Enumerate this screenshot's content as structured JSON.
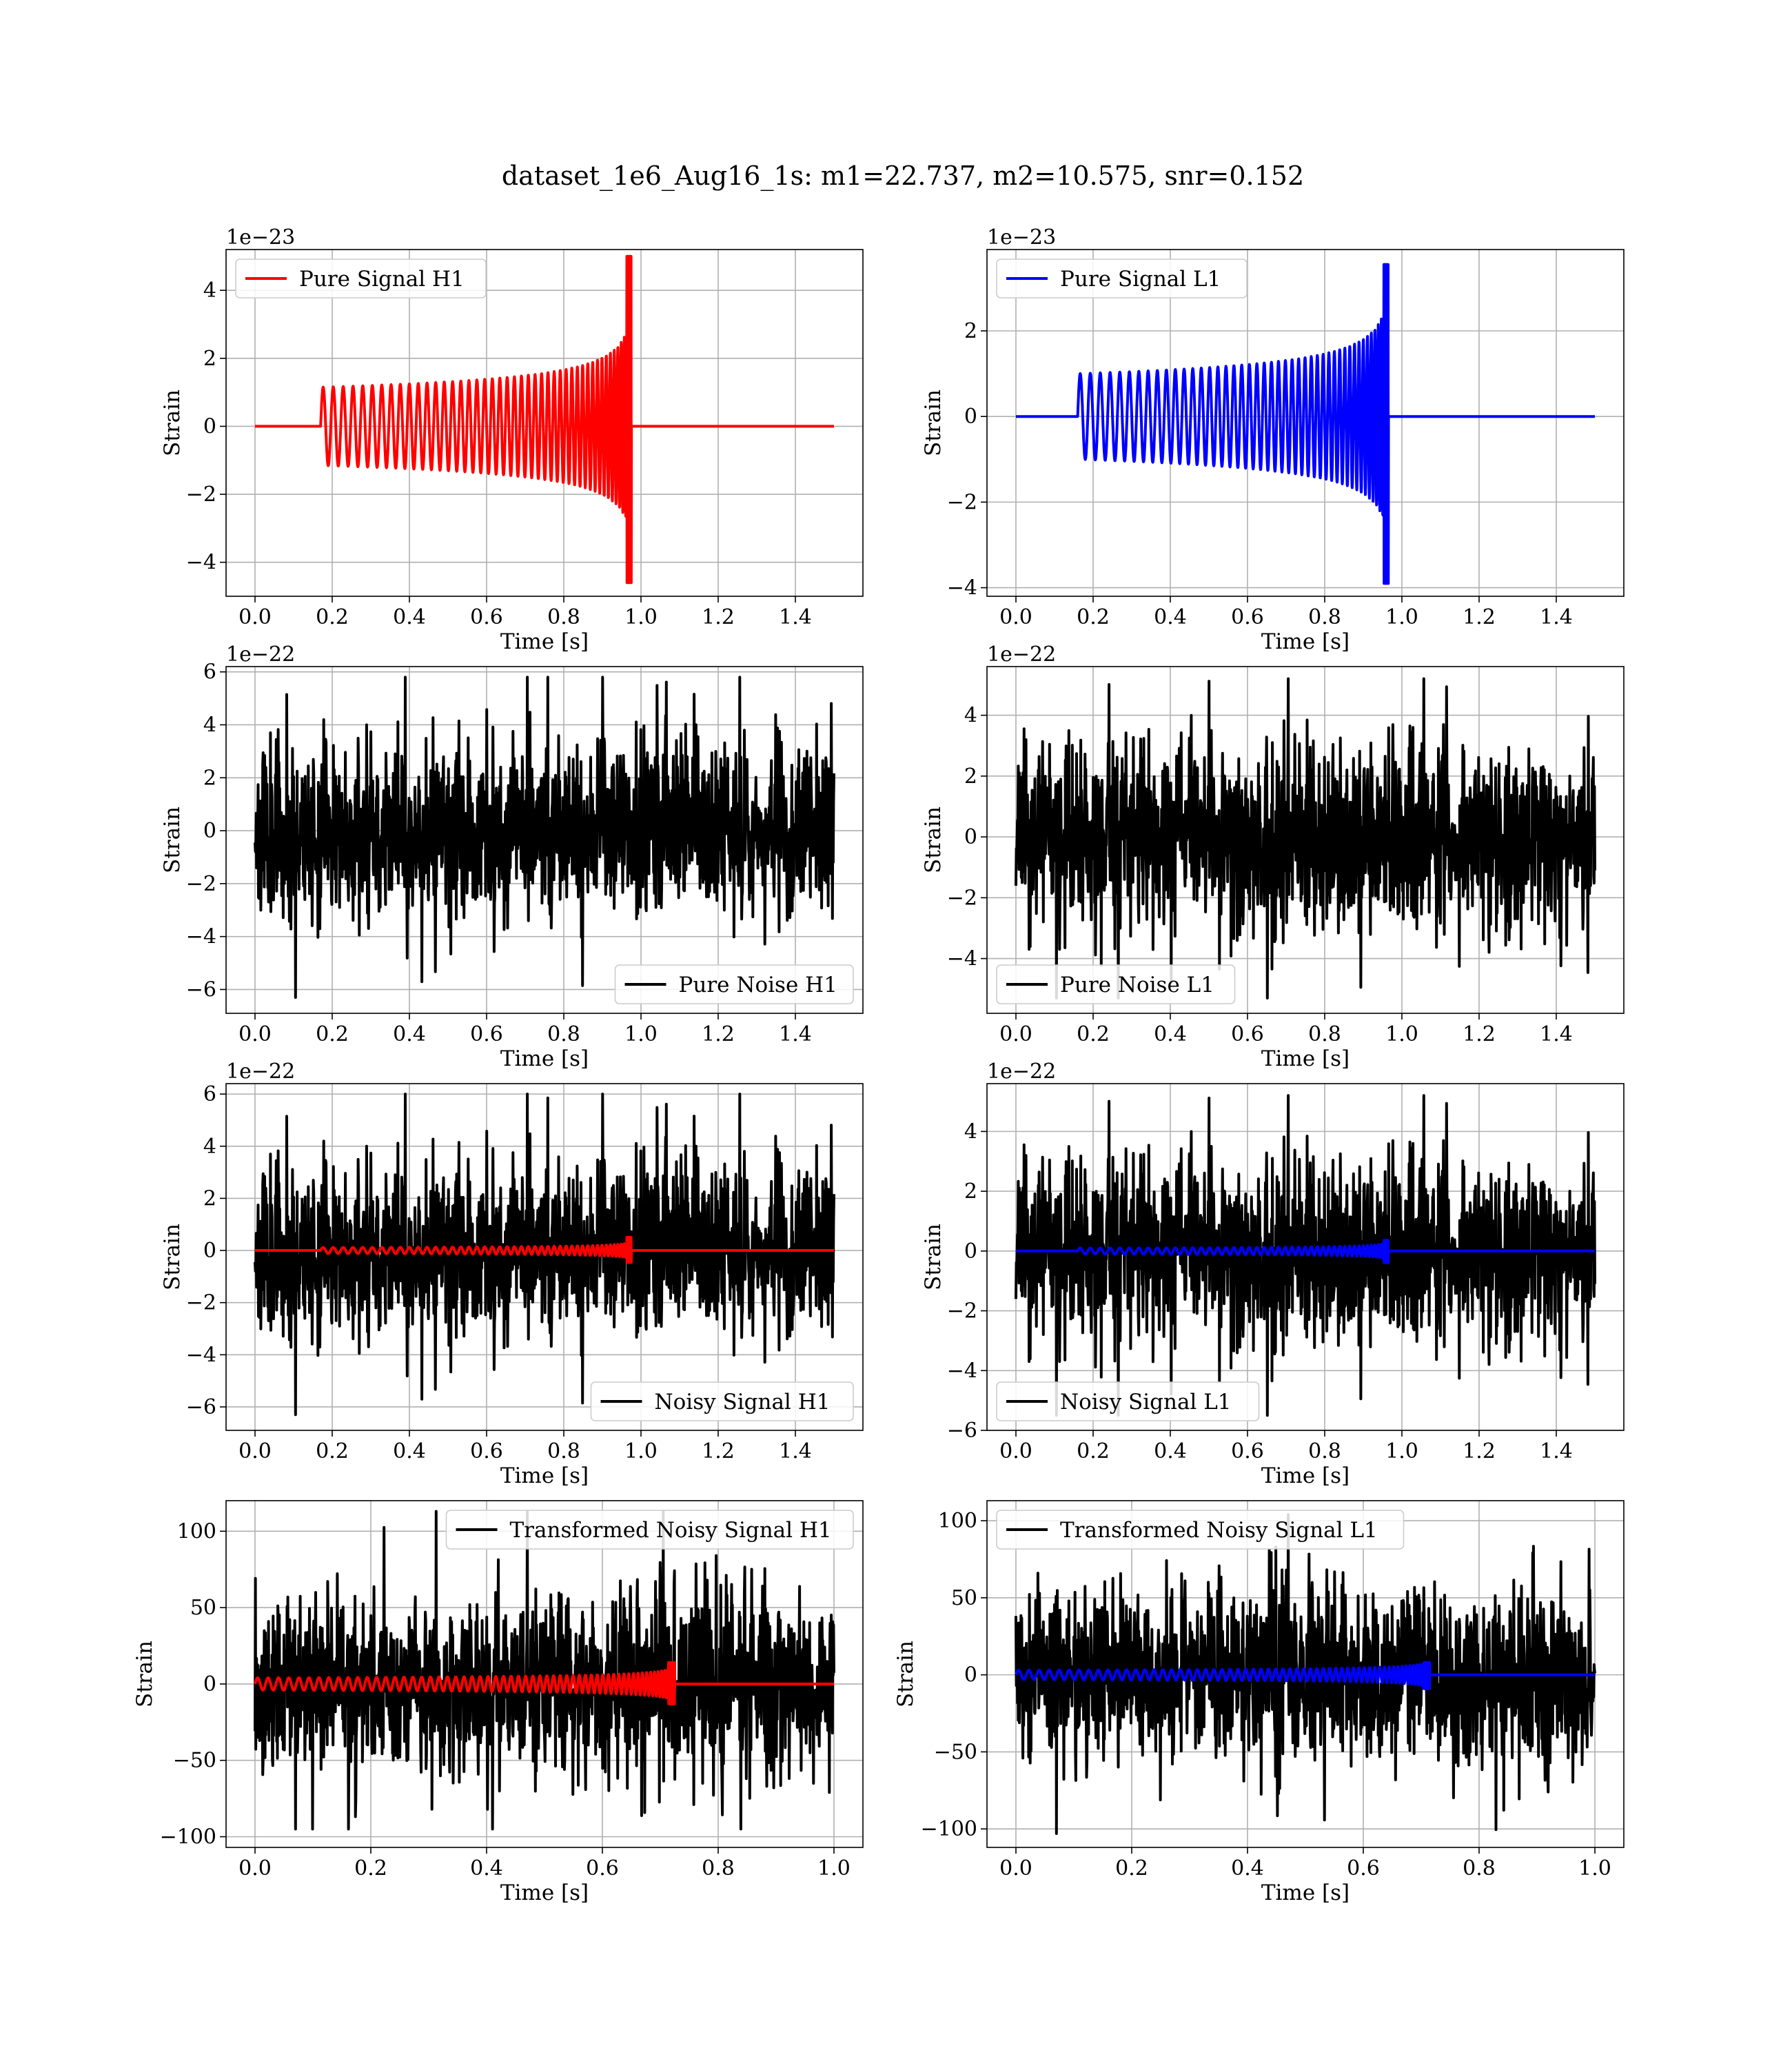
{
  "figure": {
    "title": "dataset_1e6_Aug16_1s: m1=22.737, m2=10.575, snr=0.152"
  },
  "colors": {
    "h1": "#ff0000",
    "l1": "#0000ff",
    "noise": "#000000",
    "grid": "#b0b0b0"
  },
  "chart_data": [
    {
      "id": "h1_signal",
      "type": "line",
      "xlabel": "Time [s]",
      "ylabel": "Strain",
      "offset": "1e−23",
      "xlim": [
        -0.075,
        1.575
      ],
      "ylim": [
        -5.0,
        5.2
      ],
      "xticks": [
        0.0,
        0.2,
        0.4,
        0.6,
        0.8,
        1.0,
        1.2,
        1.4
      ],
      "xtick_labels": [
        "0.0",
        "0.2",
        "0.4",
        "0.6",
        "0.8",
        "1.0",
        "1.2",
        "1.4"
      ],
      "yticks": [
        -4,
        -2,
        0,
        2,
        4
      ],
      "ytick_labels": [
        "−4",
        "−2",
        "0",
        "2",
        "4"
      ],
      "grid": true,
      "legend_position": "upper left",
      "series": [
        {
          "name": "Pure Signal H1",
          "color": "#ff0000",
          "kind": "chirp",
          "x_range": [
            0.0,
            1.5
          ],
          "t_start": 0.17,
          "t_merge": 0.975,
          "base_amp": 1.15,
          "peak_pos": 5.0,
          "peak_neg": -4.6,
          "n_cycles": 46
        }
      ]
    },
    {
      "id": "l1_signal",
      "type": "line",
      "xlabel": "Time [s]",
      "ylabel": "Strain",
      "offset": "1e−23",
      "xlim": [
        -0.075,
        1.575
      ],
      "ylim": [
        -4.2,
        3.9
      ],
      "xticks": [
        0.0,
        0.2,
        0.4,
        0.6,
        0.8,
        1.0,
        1.2,
        1.4
      ],
      "xtick_labels": [
        "0.0",
        "0.2",
        "0.4",
        "0.6",
        "0.8",
        "1.0",
        "1.2",
        "1.4"
      ],
      "yticks": [
        -4,
        -2,
        0,
        2
      ],
      "ytick_labels": [
        "−4",
        "−2",
        "0",
        "2"
      ],
      "grid": true,
      "legend_position": "upper left",
      "series": [
        {
          "name": "Pure Signal L1",
          "color": "#0000ff",
          "kind": "chirp",
          "x_range": [
            0.0,
            1.5
          ],
          "t_start": 0.16,
          "t_merge": 0.965,
          "base_amp": 1.0,
          "peak_pos": 3.55,
          "peak_neg": -3.9,
          "n_cycles": 46
        }
      ]
    },
    {
      "id": "h1_noise",
      "type": "line",
      "xlabel": "Time [s]",
      "ylabel": "Strain",
      "offset": "1e−22",
      "xlim": [
        -0.075,
        1.575
      ],
      "ylim": [
        -6.9,
        6.2
      ],
      "xticks": [
        0.0,
        0.2,
        0.4,
        0.6,
        0.8,
        1.0,
        1.2,
        1.4
      ],
      "xtick_labels": [
        "0.0",
        "0.2",
        "0.4",
        "0.6",
        "0.8",
        "1.0",
        "1.2",
        "1.4"
      ],
      "yticks": [
        -6,
        -4,
        -2,
        0,
        2,
        4,
        6
      ],
      "ytick_labels": [
        "−6",
        "−4",
        "−2",
        "0",
        "2",
        "4",
        "6"
      ],
      "grid": true,
      "legend_position": "lower right",
      "series": [
        {
          "name": "Pure Noise H1",
          "color": "#000000",
          "kind": "noise",
          "x_range": [
            0.0,
            1.5
          ],
          "amp": 1.6,
          "max": 5.8,
          "min": -6.3,
          "seed": 11
        }
      ]
    },
    {
      "id": "l1_noise",
      "type": "line",
      "xlabel": "Time [s]",
      "ylabel": "Strain",
      "offset": "1e−22",
      "xlim": [
        -0.075,
        1.575
      ],
      "ylim": [
        -5.8,
        5.6
      ],
      "xticks": [
        0.0,
        0.2,
        0.4,
        0.6,
        0.8,
        1.0,
        1.2,
        1.4
      ],
      "xtick_labels": [
        "0.0",
        "0.2",
        "0.4",
        "0.6",
        "0.8",
        "1.0",
        "1.2",
        "1.4"
      ],
      "yticks": [
        -4,
        -2,
        0,
        2,
        4
      ],
      "ytick_labels": [
        "−4",
        "−2",
        "0",
        "2",
        "4"
      ],
      "grid": true,
      "legend_position": "lower left",
      "series": [
        {
          "name": "Pure Noise L1",
          "color": "#000000",
          "kind": "noise",
          "x_range": [
            0.0,
            1.5
          ],
          "amp": 1.45,
          "max": 5.2,
          "min": -5.3,
          "seed": 23
        }
      ]
    },
    {
      "id": "h1_noisy",
      "type": "line",
      "xlabel": "Time [s]",
      "ylabel": "Strain",
      "offset": "1e−22",
      "xlim": [
        -0.075,
        1.575
      ],
      "ylim": [
        -6.9,
        6.4
      ],
      "xticks": [
        0.0,
        0.2,
        0.4,
        0.6,
        0.8,
        1.0,
        1.2,
        1.4
      ],
      "xtick_labels": [
        "0.0",
        "0.2",
        "0.4",
        "0.6",
        "0.8",
        "1.0",
        "1.2",
        "1.4"
      ],
      "yticks": [
        -6,
        -4,
        -2,
        0,
        2,
        4,
        6
      ],
      "ytick_labels": [
        "−6",
        "−4",
        "−2",
        "0",
        "2",
        "4",
        "6"
      ],
      "grid": true,
      "legend_position": "lower right",
      "series": [
        {
          "name": "Noisy Signal H1",
          "color": "#000000",
          "kind": "noise",
          "x_range": [
            0.0,
            1.5
          ],
          "amp": 1.6,
          "max": 6.0,
          "min": -6.3,
          "seed": 11
        },
        {
          "name": "",
          "color": "#ff0000",
          "kind": "chirp",
          "x_range": [
            0.0,
            1.5
          ],
          "t_start": 0.17,
          "t_merge": 0.975,
          "base_amp": 0.115,
          "peak_pos": 0.5,
          "peak_neg": -0.46,
          "n_cycles": 46
        }
      ]
    },
    {
      "id": "l1_noisy",
      "type": "line",
      "xlabel": "Time [s]",
      "ylabel": "Strain",
      "offset": "1e−22",
      "xlim": [
        -0.075,
        1.575
      ],
      "ylim": [
        -6.0,
        5.6
      ],
      "xticks": [
        0.0,
        0.2,
        0.4,
        0.6,
        0.8,
        1.0,
        1.2,
        1.4
      ],
      "xtick_labels": [
        "0.0",
        "0.2",
        "0.4",
        "0.6",
        "0.8",
        "1.0",
        "1.2",
        "1.4"
      ],
      "yticks": [
        -6,
        -4,
        -2,
        0,
        2,
        4
      ],
      "ytick_labels": [
        "−6",
        "−4",
        "−2",
        "0",
        "2",
        "4"
      ],
      "grid": true,
      "legend_position": "lower left",
      "series": [
        {
          "name": "Noisy Signal L1",
          "color": "#000000",
          "kind": "noise",
          "x_range": [
            0.0,
            1.5
          ],
          "amp": 1.45,
          "max": 5.2,
          "min": -5.5,
          "seed": 23
        },
        {
          "name": "",
          "color": "#0000ff",
          "kind": "chirp",
          "x_range": [
            0.0,
            1.5
          ],
          "t_start": 0.16,
          "t_merge": 0.965,
          "base_amp": 0.1,
          "peak_pos": 0.36,
          "peak_neg": -0.39,
          "n_cycles": 46
        }
      ]
    },
    {
      "id": "h1_transformed",
      "type": "line",
      "xlabel": "Time [s]",
      "ylabel": "Strain",
      "offset": "",
      "xlim": [
        -0.05,
        1.05
      ],
      "ylim": [
        -107,
        120
      ],
      "xticks": [
        0.0,
        0.2,
        0.4,
        0.6,
        0.8,
        1.0
      ],
      "xtick_labels": [
        "0.0",
        "0.2",
        "0.4",
        "0.6",
        "0.8",
        "1.0"
      ],
      "yticks": [
        -100,
        -50,
        0,
        50,
        100
      ],
      "ytick_labels": [
        "−100",
        "−50",
        "0",
        "50",
        "100"
      ],
      "grid": true,
      "legend_position": "upper right",
      "series": [
        {
          "name": "Transformed Noisy Signal H1",
          "color": "#000000",
          "kind": "noise",
          "x_range": [
            0.0,
            1.0
          ],
          "amp": 28,
          "max": 113,
          "min": -95,
          "seed": 37
        },
        {
          "name": "",
          "color": "#ff0000",
          "kind": "chirp",
          "x_range": [
            0.0,
            1.0
          ],
          "t_start": 0.0,
          "t_merge": 0.725,
          "base_amp": 4,
          "peak_pos": 14,
          "peak_neg": -13,
          "n_cycles": 60
        }
      ]
    },
    {
      "id": "l1_transformed",
      "type": "line",
      "xlabel": "Time [s]",
      "ylabel": "Strain",
      "offset": "",
      "xlim": [
        -0.05,
        1.05
      ],
      "ylim": [
        -112,
        113
      ],
      "xticks": [
        0.0,
        0.2,
        0.4,
        0.6,
        0.8,
        1.0
      ],
      "xtick_labels": [
        "0.0",
        "0.2",
        "0.4",
        "0.6",
        "0.8",
        "1.0"
      ],
      "yticks": [
        -100,
        -50,
        0,
        50,
        100
      ],
      "ytick_labels": [
        "−100",
        "−50",
        "0",
        "50",
        "100"
      ],
      "grid": true,
      "legend_position": "upper left",
      "series": [
        {
          "name": "Transformed Noisy Signal L1",
          "color": "#000000",
          "kind": "noise",
          "x_range": [
            0.0,
            1.0
          ],
          "amp": 27,
          "max": 104,
          "min": -103,
          "seed": 53
        },
        {
          "name": "",
          "color": "#0000ff",
          "kind": "chirp",
          "x_range": [
            0.0,
            1.0
          ],
          "t_start": 0.0,
          "t_merge": 0.715,
          "base_amp": 3,
          "peak_pos": 8,
          "peak_neg": -9,
          "n_cycles": 60
        }
      ]
    }
  ]
}
